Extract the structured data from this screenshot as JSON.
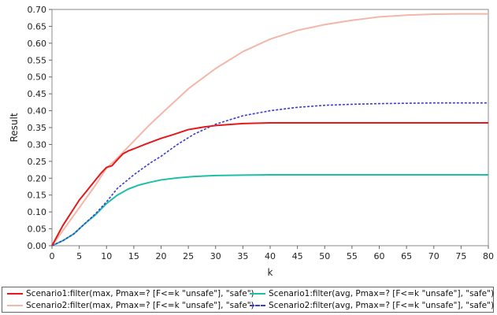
{
  "chart_data": {
    "type": "line",
    "xlabel": "k",
    "ylabel": "Result",
    "xlim": [
      0,
      80
    ],
    "ylim": [
      0,
      0.7
    ],
    "xticks": [
      "0",
      "5",
      "10",
      "15",
      "20",
      "25",
      "30",
      "35",
      "40",
      "45",
      "50",
      "55",
      "60",
      "65",
      "70",
      "75",
      "80"
    ],
    "yticks": [
      "0.00",
      "0.05",
      "0.10",
      "0.15",
      "0.20",
      "0.25",
      "0.30",
      "0.35",
      "0.40",
      "0.45",
      "0.50",
      "0.55",
      "0.60",
      "0.65",
      "0.70"
    ],
    "grid": false,
    "legend_position": "bottom",
    "series": [
      {
        "name": "Scenario1:filter(max, Pmax=? [F<=k \"unsafe\"], \"safe\")",
        "color": "#e3191c",
        "style": "solid",
        "x": [
          0,
          1,
          2,
          3,
          4,
          5,
          6,
          7,
          8,
          9,
          10,
          11,
          12,
          13,
          14,
          15,
          17,
          20,
          22,
          25,
          28,
          30,
          35,
          40,
          50,
          60,
          70,
          80
        ],
        "y": [
          0.0,
          0.03,
          0.06,
          0.085,
          0.11,
          0.135,
          0.155,
          0.175,
          0.195,
          0.215,
          0.232,
          0.237,
          0.255,
          0.272,
          0.281,
          0.287,
          0.3,
          0.318,
          0.328,
          0.344,
          0.352,
          0.356,
          0.362,
          0.364,
          0.364,
          0.364,
          0.364,
          0.364
        ]
      },
      {
        "name": "Scenario1:filter(avg, Pmax=? [F<=k \"unsafe\"], \"safe\")",
        "color": "#1fbfa6",
        "style": "solid",
        "x": [
          0,
          2,
          4,
          6,
          8,
          10,
          12,
          14,
          16,
          18,
          20,
          23,
          26,
          30,
          35,
          40,
          50,
          60,
          70,
          80
        ],
        "y": [
          0.0,
          0.015,
          0.035,
          0.065,
          0.092,
          0.125,
          0.15,
          0.168,
          0.18,
          0.188,
          0.195,
          0.201,
          0.205,
          0.208,
          0.209,
          0.21,
          0.21,
          0.21,
          0.21,
          0.21
        ]
      },
      {
        "name": "Scenario2:filter(max, Pmax=? [F<=k \"unsafe\"], \"safe\")",
        "color": "#f4b6a8",
        "style": "solid",
        "x": [
          0,
          2,
          4,
          6,
          8,
          10,
          12,
          15,
          18,
          20,
          25,
          30,
          35,
          40,
          45,
          50,
          55,
          60,
          65,
          70,
          75,
          80
        ],
        "y": [
          0.0,
          0.045,
          0.09,
          0.135,
          0.18,
          0.23,
          0.26,
          0.31,
          0.36,
          0.39,
          0.465,
          0.525,
          0.575,
          0.612,
          0.638,
          0.655,
          0.668,
          0.678,
          0.683,
          0.686,
          0.687,
          0.687
        ]
      },
      {
        "name": "Scenario2:filter(avg, Pmax=? [F<=k \"unsafe\"], \"safe\")",
        "color": "#3b3bd0",
        "style": "dashed",
        "x": [
          0,
          2,
          4,
          6,
          8,
          10,
          12,
          15,
          18,
          20,
          23,
          26,
          30,
          35,
          40,
          45,
          50,
          55,
          60,
          65,
          70,
          75,
          80
        ],
        "y": [
          0.0,
          0.015,
          0.035,
          0.065,
          0.095,
          0.13,
          0.17,
          0.21,
          0.245,
          0.265,
          0.3,
          0.33,
          0.36,
          0.385,
          0.4,
          0.41,
          0.416,
          0.419,
          0.421,
          0.422,
          0.423,
          0.423,
          0.423
        ]
      }
    ]
  }
}
